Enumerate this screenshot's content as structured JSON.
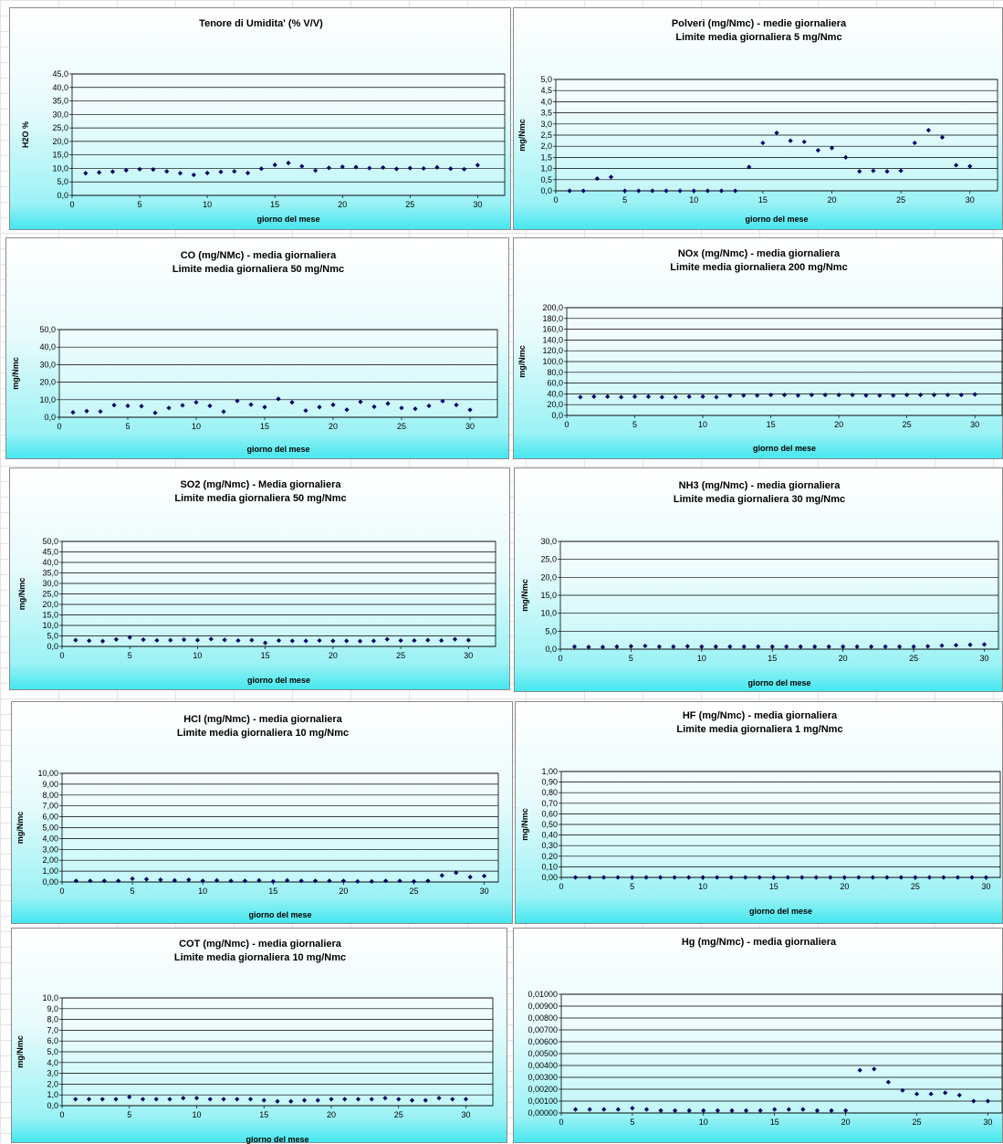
{
  "charts": [
    {
      "type": "scatter",
      "title": [
        "Tenore di Umidita' (% V/V)"
      ],
      "xlabel": "giorno del mese",
      "ylabel": "H2O %",
      "xlim": [
        0,
        32
      ],
      "xticks": [
        0,
        5,
        10,
        15,
        20,
        25,
        30
      ],
      "ylim": [
        0,
        45
      ],
      "ystep": 5,
      "ydecimals": 1,
      "x": [
        1,
        2,
        3,
        4,
        5,
        6,
        7,
        8,
        9,
        10,
        11,
        12,
        13,
        14,
        15,
        16,
        17,
        18,
        19,
        20,
        21,
        22,
        23,
        24,
        25,
        26,
        27,
        28,
        29,
        30
      ],
      "y": [
        8.2,
        8.5,
        8.8,
        9.3,
        9.7,
        9.6,
        8.9,
        8.2,
        7.6,
        8.3,
        8.7,
        8.9,
        8.3,
        9.9,
        11.3,
        12.0,
        10.8,
        9.2,
        10.2,
        10.6,
        10.5,
        10.1,
        10.3,
        9.8,
        10.1,
        10.0,
        10.4,
        9.9,
        9.7,
        11.2
      ]
    },
    {
      "type": "scatter",
      "title": [
        "Polveri (mg/Nmc) - medie giornaliera",
        "Limite media giornaliera 5 mg/Nmc"
      ],
      "xlabel": "giorno del mese",
      "ylabel": "mg/Nmc",
      "xlim": [
        0,
        32
      ],
      "xticks": [
        0,
        5,
        10,
        15,
        20,
        25,
        30
      ],
      "ylim": [
        0,
        5
      ],
      "ystep": 0.5,
      "ydecimals": 1,
      "x": [
        1,
        2,
        3,
        4,
        5,
        6,
        7,
        8,
        9,
        10,
        11,
        12,
        13,
        14,
        15,
        16,
        17,
        18,
        19,
        20,
        21,
        22,
        23,
        24,
        25,
        26,
        27,
        28,
        29,
        30
      ],
      "y": [
        0,
        0,
        0.55,
        0.62,
        0,
        0,
        0,
        0,
        0,
        0,
        0,
        0,
        0,
        1.07,
        2.15,
        2.6,
        2.25,
        2.2,
        1.82,
        1.92,
        1.5,
        0.87,
        0.9,
        0.87,
        0.9,
        2.15,
        2.72,
        2.4,
        1.15,
        1.1
      ]
    },
    {
      "type": "scatter",
      "title": [
        "CO (mg/NMc) - media giornaliera",
        "Limite media giornaliera 50 mg/Nmc"
      ],
      "xlabel": "giorno del mese",
      "ylabel": "mg/Nmc",
      "xlim": [
        0,
        32
      ],
      "xticks": [
        0,
        5,
        10,
        15,
        20,
        25,
        30
      ],
      "ylim": [
        0,
        50
      ],
      "ystep": 10,
      "ydecimals": 1,
      "x": [
        1,
        2,
        3,
        4,
        5,
        6,
        7,
        8,
        9,
        10,
        11,
        12,
        13,
        14,
        15,
        16,
        17,
        18,
        19,
        20,
        21,
        22,
        23,
        24,
        25,
        26,
        27,
        28,
        29,
        30
      ],
      "y": [
        2.8,
        3.5,
        3.3,
        6.9,
        6.5,
        6.3,
        2.5,
        5.3,
        6.8,
        8.5,
        6.5,
        3.2,
        9.3,
        7.2,
        5.8,
        10.5,
        8.5,
        3.8,
        5.8,
        7.1,
        4.3,
        8.8,
        6.0,
        7.8,
        5.3,
        4.8,
        6.5,
        9.2,
        7.0,
        4.2
      ]
    },
    {
      "type": "scatter",
      "title": [
        "NOx (mg/Nmc) - media giornaliera",
        "Limite media giornaliera 200 mg/Nmc"
      ],
      "xlabel": "giorno del mese",
      "ylabel": "mg/Nmc",
      "xlim": [
        0,
        32
      ],
      "xticks": [
        0,
        5,
        10,
        15,
        20,
        25,
        30
      ],
      "ylim": [
        0,
        200
      ],
      "ystep": 20,
      "ydecimals": 1,
      "x": [
        1,
        2,
        3,
        4,
        5,
        6,
        7,
        8,
        9,
        10,
        11,
        12,
        13,
        14,
        15,
        16,
        17,
        18,
        19,
        20,
        21,
        22,
        23,
        24,
        25,
        26,
        27,
        28,
        29,
        30
      ],
      "y": [
        34,
        35,
        35,
        34,
        35,
        35,
        34,
        34,
        35,
        35,
        34,
        37,
        37,
        37,
        38,
        38,
        37,
        38,
        38,
        38,
        38,
        37,
        37,
        37,
        38,
        38,
        38,
        38,
        38,
        39
      ]
    },
    {
      "type": "scatter",
      "title": [
        "SO2 (mg/Nmc) - Media giornaliera",
        "Limite media giornaliera 50 mg/Nmc"
      ],
      "xlabel": "giorno del mese",
      "ylabel": "mg/Nmc",
      "xlim": [
        0,
        32
      ],
      "xticks": [
        0,
        5,
        10,
        15,
        20,
        25,
        30
      ],
      "ylim": [
        0,
        50
      ],
      "ystep": 5,
      "ydecimals": 1,
      "x": [
        1,
        2,
        3,
        4,
        5,
        6,
        7,
        8,
        9,
        10,
        11,
        12,
        13,
        14,
        15,
        16,
        17,
        18,
        19,
        20,
        21,
        22,
        23,
        24,
        25,
        26,
        27,
        28,
        29,
        30
      ],
      "y": [
        3.0,
        2.7,
        2.5,
        3.3,
        4.3,
        3.2,
        2.9,
        3.0,
        3.2,
        3.0,
        3.5,
        3.1,
        2.8,
        3.0,
        1.7,
        2.8,
        2.6,
        2.6,
        2.8,
        2.6,
        2.6,
        2.5,
        2.6,
        3.4,
        2.8,
        2.8,
        3.0,
        2.8,
        3.4,
        3.0
      ]
    },
    {
      "type": "scatter",
      "title": [
        "NH3 (mg/Nmc) - media giornaliera",
        "Limite media giornaliera 30 mg/Nmc"
      ],
      "xlabel": "giorno del mese",
      "ylabel": "mg/Nmc",
      "xlim": [
        0,
        31
      ],
      "xticks": [
        0,
        5,
        10,
        15,
        20,
        25,
        30
      ],
      "ylim": [
        0,
        30
      ],
      "ystep": 5,
      "ydecimals": 1,
      "x": [
        1,
        2,
        3,
        4,
        5,
        6,
        7,
        8,
        9,
        10,
        11,
        12,
        13,
        14,
        15,
        16,
        17,
        18,
        19,
        20,
        21,
        22,
        23,
        24,
        25,
        26,
        27,
        28,
        29,
        30
      ],
      "y": [
        0.7,
        0.6,
        0.6,
        0.7,
        0.8,
        0.9,
        0.7,
        0.7,
        0.8,
        0.7,
        0.7,
        0.7,
        0.7,
        0.7,
        0.7,
        0.7,
        0.7,
        0.7,
        0.7,
        0.7,
        0.7,
        0.7,
        0.7,
        0.7,
        0.7,
        0.8,
        1.0,
        1.1,
        1.2,
        1.3
      ]
    },
    {
      "type": "scatter",
      "title": [
        "HCl (mg/Nmc) - media giornaliera",
        "Limite media giornaliera 10 mg/Nmc"
      ],
      "xlabel": "giorno del mese",
      "ylabel": "mg/Nmc",
      "xlim": [
        0,
        31
      ],
      "xticks": [
        0,
        5,
        10,
        15,
        20,
        25,
        30
      ],
      "ylim": [
        0,
        10
      ],
      "ystep": 1,
      "ydecimals": 2,
      "x": [
        1,
        2,
        3,
        4,
        5,
        6,
        7,
        8,
        9,
        10,
        11,
        12,
        13,
        14,
        15,
        16,
        17,
        18,
        19,
        20,
        21,
        22,
        23,
        24,
        25,
        26,
        27,
        28,
        29,
        30
      ],
      "y": [
        0.1,
        0.1,
        0.1,
        0.1,
        0.3,
        0.25,
        0.2,
        0.15,
        0.2,
        0.1,
        0.15,
        0.1,
        0.1,
        0.15,
        0.05,
        0.15,
        0.1,
        0.1,
        0.1,
        0.1,
        0.05,
        0.05,
        0.1,
        0.1,
        0.05,
        0.1,
        0.6,
        0.85,
        0.45,
        0.55
      ]
    },
    {
      "type": "scatter",
      "title": [
        "HF (mg/Nmc) - media giornaliera",
        "Limite media giornaliera 1 mg/Nmc"
      ],
      "xlabel": "giorno del mese",
      "ylabel": "mg/Nmc",
      "xlim": [
        0,
        31
      ],
      "xticks": [
        0,
        5,
        10,
        15,
        20,
        25,
        30
      ],
      "ylim": [
        0,
        1
      ],
      "ystep": 0.1,
      "ydecimals": 2,
      "x": [
        1,
        2,
        3,
        4,
        5,
        6,
        7,
        8,
        9,
        10,
        11,
        12,
        13,
        14,
        15,
        16,
        17,
        18,
        19,
        20,
        21,
        22,
        23,
        24,
        25,
        26,
        27,
        28,
        29,
        30
      ],
      "y": [
        0,
        0,
        0,
        0,
        0,
        0,
        0,
        0,
        0,
        0,
        0,
        0,
        0,
        0,
        0,
        0,
        0,
        0,
        0,
        0,
        0,
        0,
        0,
        0,
        0,
        0,
        0,
        0,
        0,
        0
      ]
    },
    {
      "type": "scatter",
      "title": [
        "COT (mg/Nmc) - media giornaliera",
        "Limite media giornaliera 10 mg/Nmc"
      ],
      "xlabel": "giorno del mese",
      "ylabel": "mg/Nmc",
      "xlim": [
        0,
        32
      ],
      "xticks": [
        0,
        5,
        10,
        15,
        20,
        25,
        30
      ],
      "ylim": [
        0,
        10
      ],
      "ystep": 1,
      "ydecimals": 1,
      "x": [
        1,
        2,
        3,
        4,
        5,
        6,
        7,
        8,
        9,
        10,
        11,
        12,
        13,
        14,
        15,
        16,
        17,
        18,
        19,
        20,
        21,
        22,
        23,
        24,
        25,
        26,
        27,
        28,
        29,
        30
      ],
      "y": [
        0.6,
        0.6,
        0.6,
        0.6,
        0.8,
        0.6,
        0.6,
        0.6,
        0.7,
        0.7,
        0.6,
        0.6,
        0.6,
        0.6,
        0.5,
        0.4,
        0.4,
        0.5,
        0.5,
        0.6,
        0.6,
        0.6,
        0.6,
        0.7,
        0.6,
        0.5,
        0.5,
        0.7,
        0.6,
        0.6
      ]
    },
    {
      "type": "scatter",
      "title": [
        "Hg (mg/Nmc) - media giornaliera"
      ],
      "xlabel": "",
      "ylabel": "",
      "xlim": [
        0,
        31
      ],
      "xticks": [
        0,
        5,
        10,
        15,
        20,
        25,
        30
      ],
      "ylim": [
        0,
        0.01
      ],
      "ystep": 0.001,
      "ydecimals": 5,
      "x": [
        1,
        2,
        3,
        4,
        5,
        6,
        7,
        8,
        9,
        10,
        11,
        12,
        13,
        14,
        15,
        16,
        17,
        18,
        19,
        20,
        21,
        22,
        23,
        24,
        25,
        26,
        27,
        28,
        29,
        30
      ],
      "y": [
        0.0003,
        0.0003,
        0.0003,
        0.0003,
        0.0004,
        0.0003,
        0.0002,
        0.0002,
        0.0002,
        0.0002,
        0.0002,
        0.0002,
        0.0002,
        0.0002,
        0.0003,
        0.0003,
        0.0003,
        0.0002,
        0.0002,
        0.0002,
        0.0036,
        0.0037,
        0.0026,
        0.0019,
        0.0016,
        0.0016,
        0.0017,
        0.0015,
        0.001,
        0.001
      ]
    }
  ]
}
